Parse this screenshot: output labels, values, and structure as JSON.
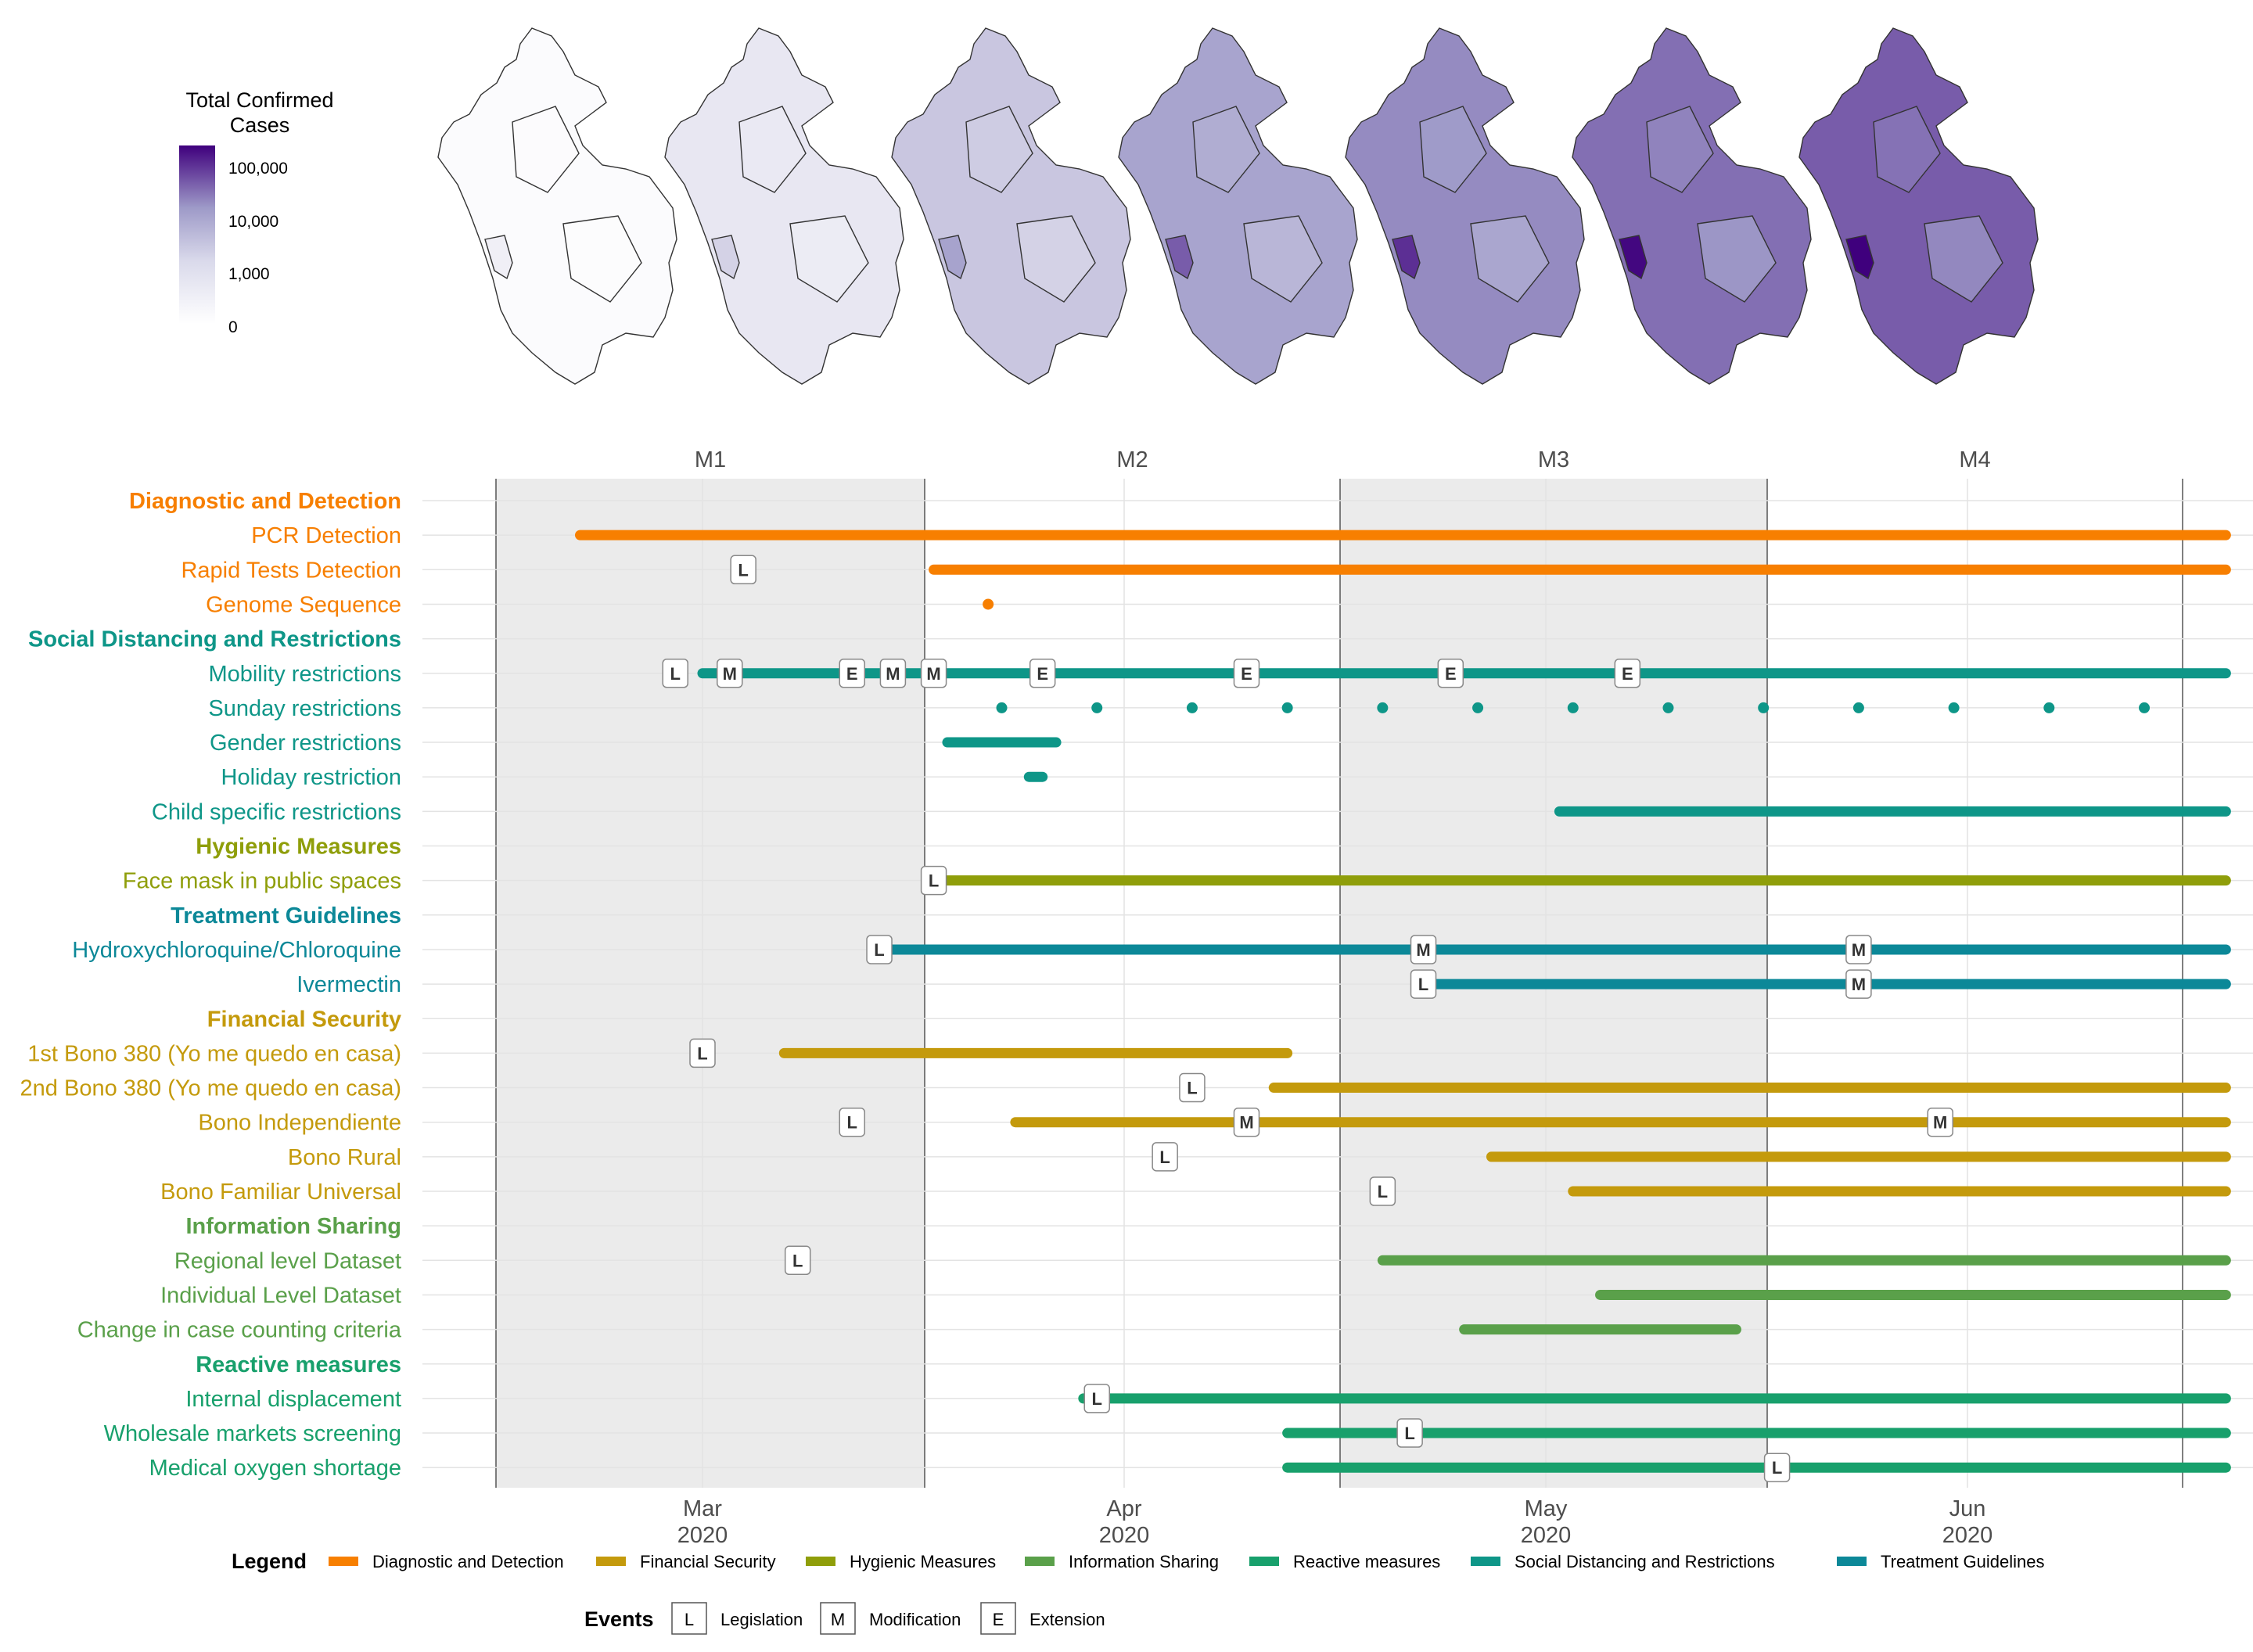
{
  "colors": {
    "Diagnostic and Detection": "#F77F00",
    "Financial Security": "#C49A0C",
    "Hygienic Measures": "#8F9E0A",
    "Information Sharing": "#5AA04A",
    "Reactive measures": "#18A06C",
    "Social Distancing and Restrictions": "#0E9688",
    "Treatment Guidelines": "#0C8898",
    "panel_shade": "#ebebeb",
    "grid": "#e3e3e3"
  },
  "colorbar": {
    "title_line1": "Total Confirmed",
    "title_line2": "Cases",
    "ticks": [
      "100,000",
      "10,000",
      "1,000",
      "0"
    ],
    "low_color": "#ffffff",
    "high_color": "#3f007d"
  },
  "maps": {
    "description_levels": [
      0.02,
      0.12,
      0.28,
      0.45,
      0.55,
      0.64,
      0.7
    ]
  },
  "chart_data": {
    "type": "gantt",
    "panels": [
      "M1",
      "M2",
      "M3",
      "M4"
    ],
    "x_ticks": [
      {
        "line1": "Mar",
        "line2": "2020"
      },
      {
        "line1": "Apr",
        "line2": "2020"
      },
      {
        "line1": "May",
        "line2": "2020"
      },
      {
        "line1": "Jun",
        "line2": "2020"
      }
    ],
    "x_range": [
      "2020-02-06",
      "2020-06-22"
    ],
    "rows": [
      {
        "label": "Diagnostic and Detection",
        "header": true,
        "category": "Diagnostic and Detection"
      },
      {
        "label": "PCR Detection",
        "category": "Diagnostic and Detection",
        "segments": [
          [
            "2020-02-21",
            "2020-06-21"
          ]
        ],
        "events": []
      },
      {
        "label": "Rapid Tests Detection",
        "category": "Diagnostic and Detection",
        "segments": [
          [
            "2020-03-18",
            "2020-06-21"
          ]
        ],
        "events": [
          [
            "L",
            "2020-03-04"
          ]
        ]
      },
      {
        "label": "Genome Sequence",
        "category": "Diagnostic and Detection",
        "segments": [],
        "dots": [
          "2020-03-22"
        ],
        "events": []
      },
      {
        "label": "Social Distancing and Restrictions",
        "header": true,
        "category": "Social Distancing and Restrictions"
      },
      {
        "label": "Mobility restrictions",
        "category": "Social Distancing and Restrictions",
        "segments": [
          [
            "2020-03-01",
            "2020-06-21"
          ]
        ],
        "events": [
          [
            "L",
            "2020-02-28"
          ],
          [
            "M",
            "2020-03-03"
          ],
          [
            "E",
            "2020-03-12"
          ],
          [
            "M",
            "2020-03-15"
          ],
          [
            "M",
            "2020-03-18"
          ],
          [
            "E",
            "2020-03-26"
          ],
          [
            "E",
            "2020-04-10"
          ],
          [
            "E",
            "2020-04-25"
          ],
          [
            "E",
            "2020-05-08"
          ]
        ]
      },
      {
        "label": "Sunday restrictions",
        "category": "Social Distancing and Restrictions",
        "segments": [],
        "dots": [
          "2020-03-23",
          "2020-03-30",
          "2020-04-06",
          "2020-04-13",
          "2020-04-20",
          "2020-04-27",
          "2020-05-04",
          "2020-05-11",
          "2020-05-18",
          "2020-05-25",
          "2020-06-01",
          "2020-06-08",
          "2020-06-15"
        ],
        "events": []
      },
      {
        "label": "Gender restrictions",
        "category": "Social Distancing and Restrictions",
        "segments": [
          [
            "2020-03-19",
            "2020-03-27"
          ]
        ],
        "events": []
      },
      {
        "label": "Holiday restriction",
        "category": "Social Distancing and Restrictions",
        "segments": [
          [
            "2020-03-25",
            "2020-03-26"
          ]
        ],
        "events": []
      },
      {
        "label": "Child specific restrictions",
        "category": "Social Distancing and Restrictions",
        "segments": [
          [
            "2020-05-03",
            "2020-06-21"
          ]
        ],
        "events": []
      },
      {
        "label": "Hygienic Measures",
        "header": true,
        "category": "Hygienic Measures"
      },
      {
        "label": "Face mask in public spaces",
        "category": "Hygienic Measures",
        "segments": [
          [
            "2020-03-19",
            "2020-06-21"
          ]
        ],
        "events": [
          [
            "L",
            "2020-03-18"
          ]
        ]
      },
      {
        "label": "Treatment Guidelines",
        "header": true,
        "category": "Treatment Guidelines"
      },
      {
        "label": "Hydroxychloroquine/Chloroquine",
        "category": "Treatment Guidelines",
        "segments": [
          [
            "2020-03-14",
            "2020-06-21"
          ]
        ],
        "events": [
          [
            "L",
            "2020-03-14"
          ],
          [
            "M",
            "2020-04-23"
          ],
          [
            "M",
            "2020-05-25"
          ]
        ]
      },
      {
        "label": "Ivermectin",
        "category": "Treatment Guidelines",
        "segments": [
          [
            "2020-04-23",
            "2020-06-21"
          ]
        ],
        "events": [
          [
            "L",
            "2020-04-23"
          ],
          [
            "M",
            "2020-05-25"
          ]
        ]
      },
      {
        "label": "Financial Security",
        "header": true,
        "category": "Financial Security"
      },
      {
        "label": "1st Bono 380 (Yo me quedo en casa)",
        "category": "Financial Security",
        "segments": [
          [
            "2020-03-07",
            "2020-04-13"
          ]
        ],
        "events": [
          [
            "L",
            "2020-03-01"
          ]
        ]
      },
      {
        "label": "2nd Bono 380 (Yo me quedo en casa)",
        "category": "Financial Security",
        "segments": [
          [
            "2020-04-12",
            "2020-06-21"
          ]
        ],
        "events": [
          [
            "L",
            "2020-04-06"
          ]
        ]
      },
      {
        "label": "Bono Independiente",
        "category": "Financial Security",
        "segments": [
          [
            "2020-03-24",
            "2020-06-21"
          ]
        ],
        "events": [
          [
            "L",
            "2020-03-12"
          ],
          [
            "M",
            "2020-04-10"
          ],
          [
            "M",
            "2020-05-31"
          ]
        ]
      },
      {
        "label": "Bono Rural",
        "category": "Financial Security",
        "segments": [
          [
            "2020-04-28",
            "2020-06-21"
          ]
        ],
        "events": [
          [
            "L",
            "2020-04-04"
          ]
        ]
      },
      {
        "label": "Bono Familiar Universal",
        "category": "Financial Security",
        "segments": [
          [
            "2020-05-04",
            "2020-06-21"
          ]
        ],
        "events": [
          [
            "L",
            "2020-04-20"
          ]
        ]
      },
      {
        "label": "Information Sharing",
        "header": true,
        "category": "Information Sharing"
      },
      {
        "label": "Regional level Dataset",
        "category": "Information Sharing",
        "segments": [
          [
            "2020-04-20",
            "2020-06-21"
          ]
        ],
        "events": [
          [
            "L",
            "2020-03-08"
          ]
        ]
      },
      {
        "label": "Individual Level Dataset",
        "category": "Information Sharing",
        "segments": [
          [
            "2020-05-06",
            "2020-06-21"
          ]
        ],
        "events": []
      },
      {
        "label": "Change in case counting criteria",
        "category": "Information Sharing",
        "segments": [
          [
            "2020-04-26",
            "2020-05-16"
          ]
        ],
        "events": []
      },
      {
        "label": "Reactive measures",
        "header": true,
        "category": "Reactive measures"
      },
      {
        "label": "Internal displacement",
        "category": "Reactive measures",
        "segments": [
          [
            "2020-03-29",
            "2020-06-21"
          ]
        ],
        "events": [
          [
            "L",
            "2020-03-30"
          ]
        ]
      },
      {
        "label": "Wholesale markets screening",
        "category": "Reactive measures",
        "segments": [
          [
            "2020-04-13",
            "2020-06-21"
          ]
        ],
        "events": [
          [
            "L",
            "2020-04-22"
          ]
        ]
      },
      {
        "label": "Medical oxygen shortage",
        "category": "Reactive measures",
        "segments": [
          [
            "2020-04-13",
            "2020-06-21"
          ]
        ],
        "events": [
          [
            "L",
            "2020-05-19"
          ]
        ]
      }
    ]
  },
  "legend": {
    "title": "Legend",
    "items": [
      "Diagnostic and Detection",
      "Financial Security",
      "Hygienic Measures",
      "Information Sharing",
      "Reactive measures",
      "Social Distancing and Restrictions",
      "Treatment Guidelines"
    ]
  },
  "events_legend": {
    "title": "Events",
    "items": [
      {
        "key": "L",
        "label": "Legislation"
      },
      {
        "key": "M",
        "label": "Modification"
      },
      {
        "key": "E",
        "label": "Extension"
      }
    ]
  }
}
